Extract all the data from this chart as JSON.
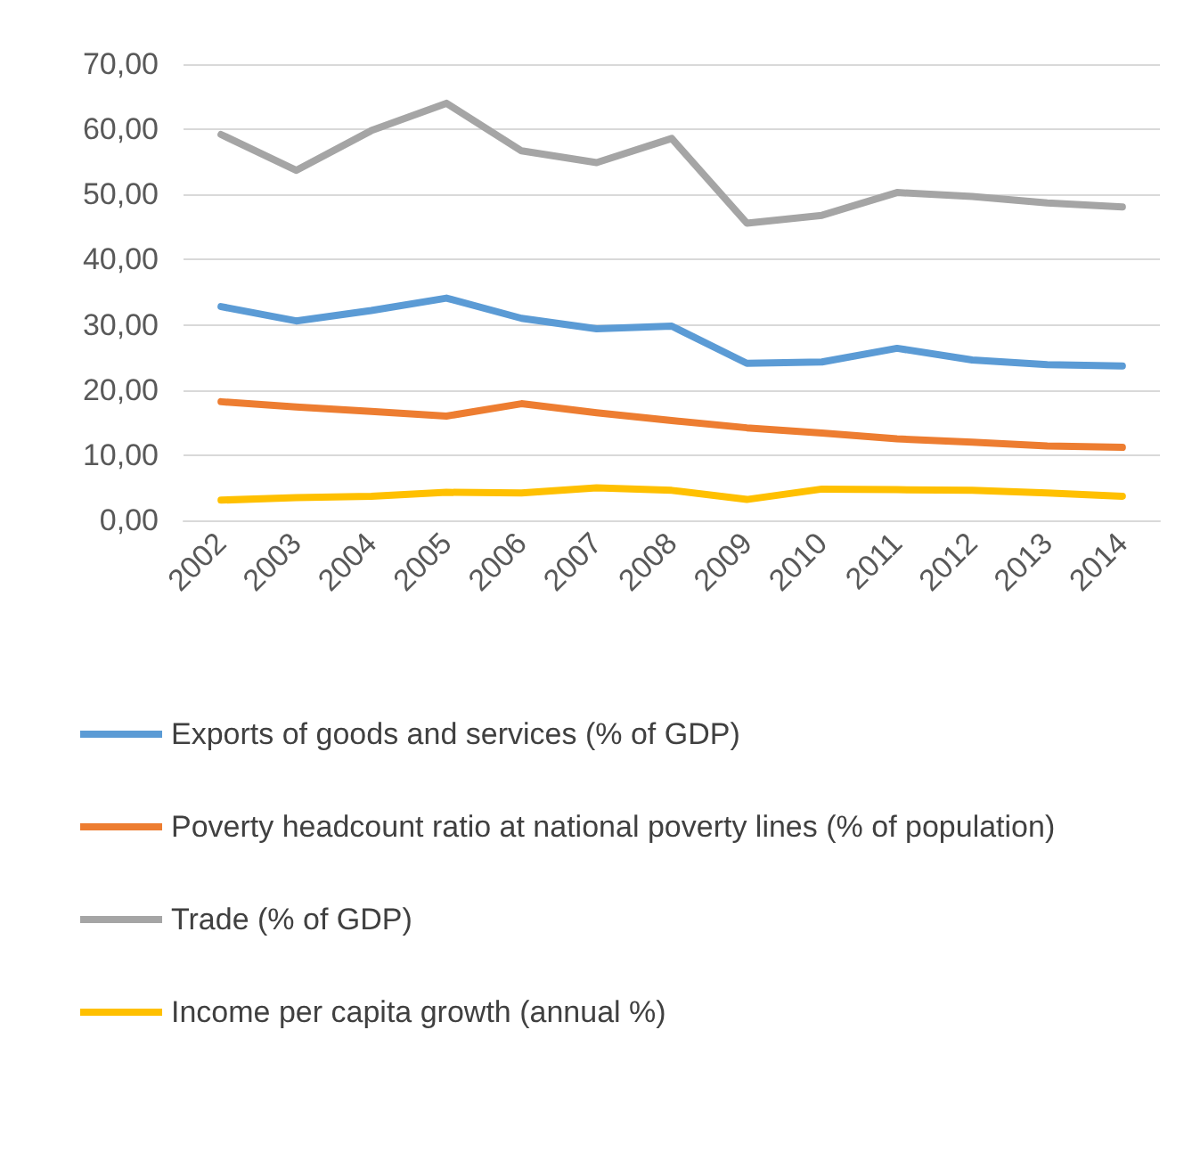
{
  "chart_data": {
    "type": "line",
    "categories": [
      "2002",
      "2003",
      "2004",
      "2005",
      "2006",
      "2007",
      "2008",
      "2009",
      "2010",
      "2011",
      "2012",
      "2013",
      "2014"
    ],
    "series": [
      {
        "name": "Exports of goods and services (% of GDP)",
        "color": "#5b9bd5",
        "values": [
          32.8,
          30.6,
          32.2,
          34.1,
          31.0,
          29.4,
          29.8,
          24.1,
          24.3,
          26.4,
          24.6,
          23.9,
          23.7
        ]
      },
      {
        "name": "Poverty headcount ratio at national poverty lines (% of population)",
        "color": "#ed7d31",
        "values": [
          18.2,
          17.4,
          16.7,
          16.0,
          17.9,
          16.5,
          15.3,
          14.2,
          13.4,
          12.5,
          12.0,
          11.4,
          11.2
        ]
      },
      {
        "name": "Trade (% of GDP)",
        "color": "#a5a5a5",
        "values": [
          59.2,
          53.7,
          59.8,
          64.0,
          56.7,
          54.9,
          58.6,
          45.6,
          46.8,
          50.3,
          49.7,
          48.7,
          48.1
        ]
      },
      {
        "name": "Income per capita growth (annual %)",
        "color": "#ffc000",
        "values": [
          3.1,
          3.5,
          3.7,
          4.3,
          4.2,
          5.0,
          4.6,
          3.2,
          4.8,
          4.7,
          4.6,
          4.2,
          3.7
        ]
      }
    ],
    "ylim": [
      0,
      70
    ],
    "yticks": [
      {
        "value": 0,
        "label": "0,00"
      },
      {
        "value": 10,
        "label": "10,00"
      },
      {
        "value": 20,
        "label": "20,00"
      },
      {
        "value": 30,
        "label": "30,00"
      },
      {
        "value": 40,
        "label": "40,00"
      },
      {
        "value": 50,
        "label": "50,00"
      },
      {
        "value": 60,
        "label": "60,00"
      },
      {
        "value": 70,
        "label": "70,00"
      }
    ],
    "grid": "y",
    "legend": "bottom",
    "marker": "none",
    "line_style": "solid"
  }
}
